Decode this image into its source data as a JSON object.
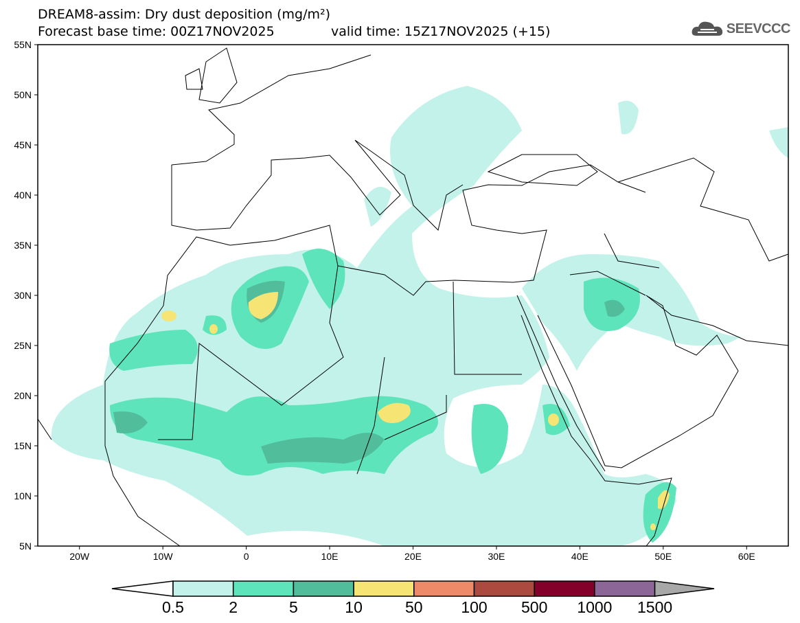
{
  "title": {
    "line1": "DREAM8-assim: Dry dust deposition (mg/m²)",
    "base": "Forecast base time: 00Z17NOV2025",
    "valid": "valid time: 15Z17NOV2025 (+15)"
  },
  "logo": {
    "text": "SEEVCCC",
    "icon": "cloud-icon"
  },
  "map": {
    "lon_range": [
      -25,
      65
    ],
    "lat_range": [
      5,
      55
    ],
    "lat_ticks": [
      {
        "v": 55,
        "l": "55N"
      },
      {
        "v": 50,
        "l": "50N"
      },
      {
        "v": 45,
        "l": "45N"
      },
      {
        "v": 40,
        "l": "40N"
      },
      {
        "v": 35,
        "l": "35N"
      },
      {
        "v": 30,
        "l": "30N"
      },
      {
        "v": 25,
        "l": "25N"
      },
      {
        "v": 20,
        "l": "20N"
      },
      {
        "v": 15,
        "l": "15N"
      },
      {
        "v": 10,
        "l": "10N"
      },
      {
        "v": 5,
        "l": "5N"
      }
    ],
    "lon_ticks": [
      {
        "v": -20,
        "l": "20W"
      },
      {
        "v": -10,
        "l": "10W"
      },
      {
        "v": 0,
        "l": "0"
      },
      {
        "v": 10,
        "l": "10E"
      },
      {
        "v": 20,
        "l": "20E"
      },
      {
        "v": 30,
        "l": "30E"
      },
      {
        "v": 40,
        "l": "40E"
      },
      {
        "v": 50,
        "l": "50E"
      },
      {
        "v": 60,
        "l": "60E"
      }
    ]
  },
  "colorbar": {
    "labels": [
      "0.5",
      "2",
      "5",
      "10",
      "50",
      "100",
      "500",
      "1000",
      "1500"
    ],
    "colors": [
      "#c3f2ea",
      "#5ee4bb",
      "#52bd9b",
      "#f6e475",
      "#ee8a67",
      "#ac4a40",
      "#820029",
      "#8c6697"
    ],
    "under_color": "#ffffff",
    "over_color": "#a8a8a8"
  }
}
